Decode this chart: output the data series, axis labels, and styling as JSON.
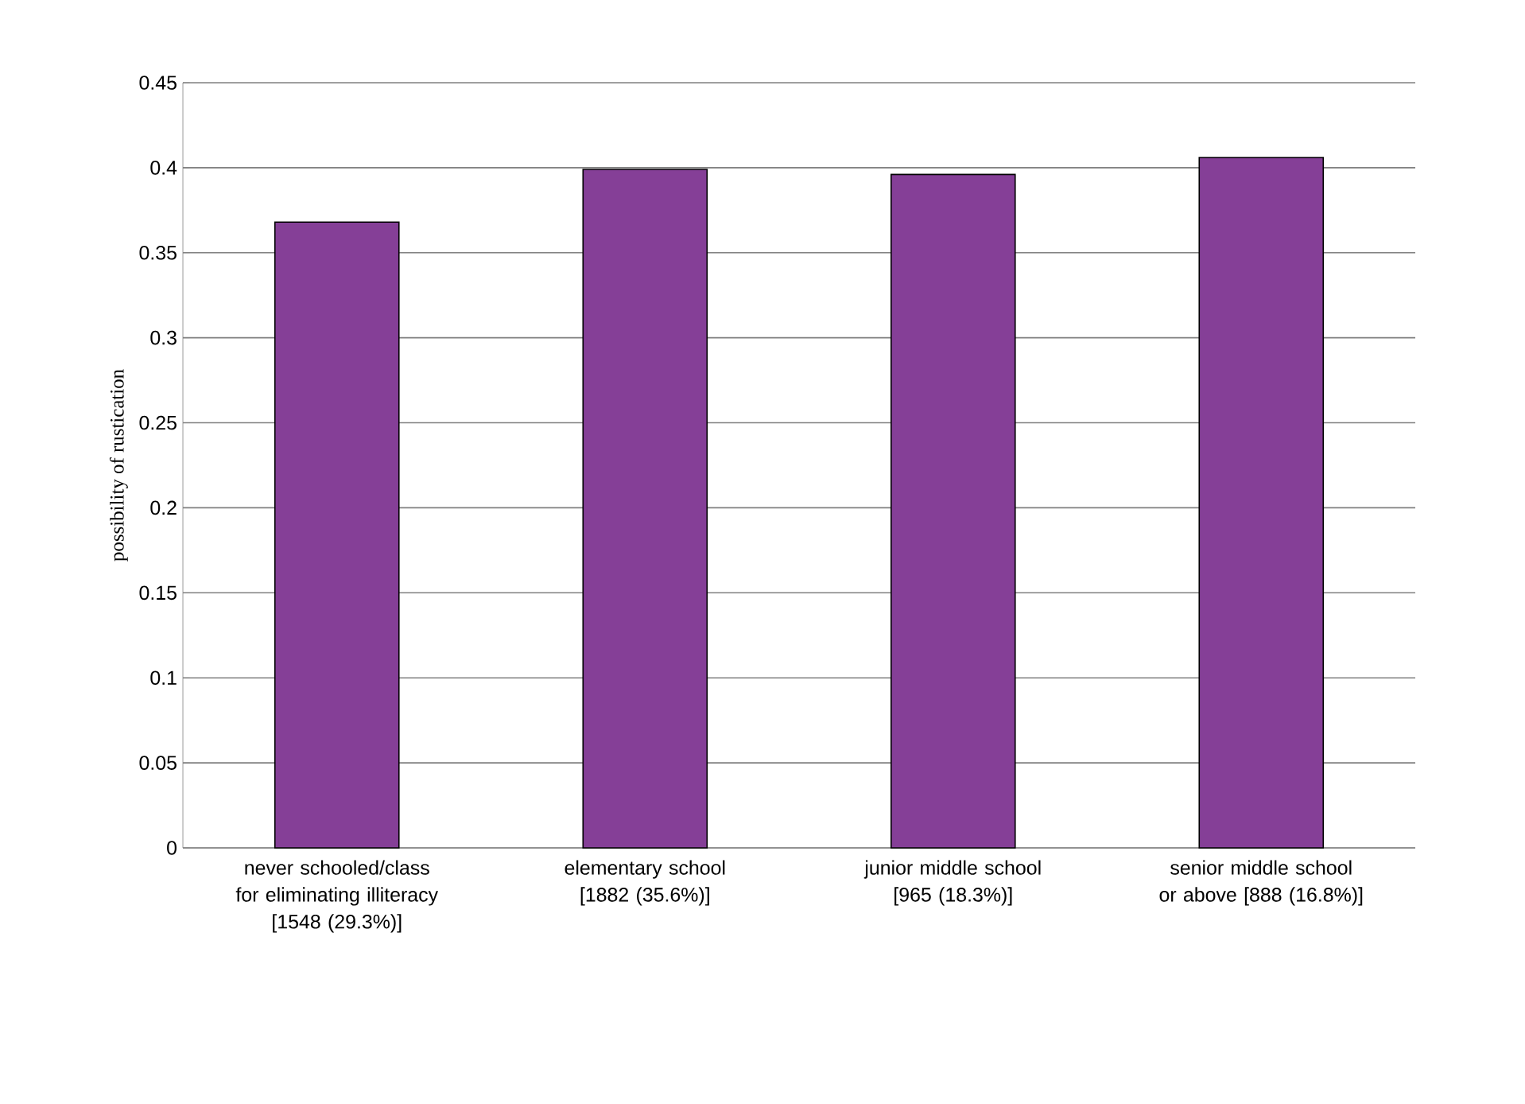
{
  "chart_data": {
    "type": "bar",
    "ylabel": "possibility of rustication",
    "categories": [
      "never schooled/class for eliminating illiteracy [1548 (29.3%)]",
      "elementary school [1882 (35.6%)]",
      "junior middle school [965 (18.3%)]",
      "senior middle school or above [888 (16.8%)]"
    ],
    "values": [
      0.368,
      0.399,
      0.396,
      0.406
    ],
    "color": "#853f97",
    "ylim": [
      0,
      0.45
    ],
    "yticks": [
      0,
      0.05,
      0.1,
      0.15,
      0.2,
      0.25,
      0.3,
      0.35,
      0.4,
      0.45
    ],
    "grid": "y"
  }
}
